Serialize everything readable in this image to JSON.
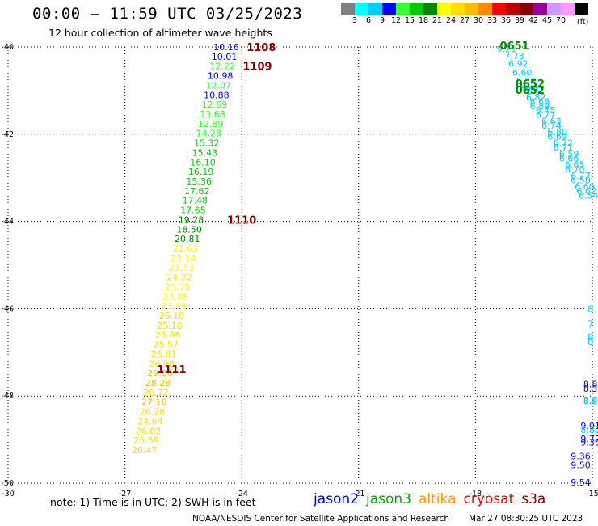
{
  "header": {
    "title": "00:00 – 11:59 UTC 03/25/2023",
    "subtitle": "12 hour collection of altimeter wave heights"
  },
  "legend": {
    "labels": [
      "3",
      "6",
      "9",
      "12",
      "15",
      "18",
      "21",
      "24",
      "27",
      "30",
      "33",
      "36",
      "39",
      "42",
      "45",
      "70"
    ],
    "colors": [
      "#808080",
      "#00ffff",
      "#00ccff",
      "#0000ff",
      "#33ff33",
      "#00cc00",
      "#008800",
      "#ffff00",
      "#ffdd00",
      "#ffbb00",
      "#ff8800",
      "#ff0000",
      "#bb0000",
      "#880000",
      "#990099",
      "#cc99ff",
      "#ff99ff",
      "#000000"
    ],
    "unit": "(ft)"
  },
  "footer": {
    "note": "note:  1) Time is in UTC; 2) SWH is in feet",
    "satellites": [
      {
        "name": "jason2",
        "color": "#0000ee"
      },
      {
        "name": "jason3",
        "color": "#00aa00"
      },
      {
        "name": "altika",
        "color": "#ff9900"
      },
      {
        "name": "cryosat",
        "color": "#ee0000"
      },
      {
        "name": "s3a",
        "color": "#880000"
      }
    ],
    "credit": "NOAA/NESDIS Center for Satellite Applications and Research",
    "timestamp": "Mar 27 08:30:25 UTC 2023"
  },
  "chart_data": {
    "type": "scatter",
    "xlim": [
      -30,
      -15
    ],
    "ylim": [
      -50,
      -40
    ],
    "x_ticks": [
      -30,
      -27,
      -24,
      -21,
      -18,
      -15
    ],
    "y_ticks": [
      -40,
      -42,
      -44,
      -46,
      -48,
      -50
    ],
    "x_tick_labels": [
      "-30",
      "-27",
      "-24",
      "-21",
      "-18",
      "-15"
    ],
    "y_tick_labels": [
      "-40",
      "-42",
      "-44",
      "-46",
      "-48",
      "-50"
    ],
    "grid": true,
    "track_swh": [
      {
        "x": -24.4,
        "y": -40.0,
        "v": "10.16",
        "c": "#0000ff"
      },
      {
        "x": -24.45,
        "y": -40.22,
        "v": "10.01",
        "c": "#0000ff"
      },
      {
        "x": -24.5,
        "y": -40.44,
        "v": "12.22",
        "c": "#33ff33"
      },
      {
        "x": -24.55,
        "y": -40.66,
        "v": "10.98",
        "c": "#0000ff"
      },
      {
        "x": -24.6,
        "y": -40.88,
        "v": "12.07",
        "c": "#33ff33"
      },
      {
        "x": -24.65,
        "y": -41.1,
        "v": "10.88",
        "c": "#0000ff"
      },
      {
        "x": -24.7,
        "y": -41.32,
        "v": "12.69",
        "c": "#33ff33"
      },
      {
        "x": -24.75,
        "y": -41.54,
        "v": "13.68",
        "c": "#33ff33"
      },
      {
        "x": -24.8,
        "y": -41.76,
        "v": "12.89",
        "c": "#33ff33"
      },
      {
        "x": -24.85,
        "y": -41.98,
        "v": "14.28",
        "c": "#33ff33"
      },
      {
        "x": -24.9,
        "y": -42.2,
        "v": "15.32",
        "c": "#00cc00"
      },
      {
        "x": -24.95,
        "y": -42.42,
        "v": "15.43",
        "c": "#00cc00"
      },
      {
        "x": -25.0,
        "y": -42.64,
        "v": "16.10",
        "c": "#00cc00"
      },
      {
        "x": -25.05,
        "y": -42.86,
        "v": "16.19",
        "c": "#00cc00"
      },
      {
        "x": -25.1,
        "y": -43.08,
        "v": "15.36",
        "c": "#00cc00"
      },
      {
        "x": -25.15,
        "y": -43.3,
        "v": "17.62",
        "c": "#00cc00"
      },
      {
        "x": -25.2,
        "y": -43.52,
        "v": "17.48",
        "c": "#00cc00"
      },
      {
        "x": -25.25,
        "y": -43.74,
        "v": "17.65",
        "c": "#00cc00"
      },
      {
        "x": -25.3,
        "y": -43.96,
        "v": "19.28",
        "c": "#008800"
      },
      {
        "x": -25.35,
        "y": -44.18,
        "v": "18.50",
        "c": "#008800"
      },
      {
        "x": -25.4,
        "y": -44.4,
        "v": "20.81",
        "c": "#008800"
      },
      {
        "x": -25.45,
        "y": -44.62,
        "v": "21.63",
        "c": "#ffff00"
      },
      {
        "x": -25.5,
        "y": -44.84,
        "v": "23.14",
        "c": "#ffff00"
      },
      {
        "x": -25.55,
        "y": -45.06,
        "v": "23.53",
        "c": "#ffff00"
      },
      {
        "x": -25.6,
        "y": -45.28,
        "v": "24.22",
        "c": "#ffdd00"
      },
      {
        "x": -25.65,
        "y": -45.5,
        "v": "23.78",
        "c": "#ffff00"
      },
      {
        "x": -25.7,
        "y": -45.72,
        "v": "23.88",
        "c": "#ffff00"
      },
      {
        "x": -25.75,
        "y": -45.94,
        "v": "23.78",
        "c": "#ffff00"
      },
      {
        "x": -25.8,
        "y": -46.16,
        "v": "26.10",
        "c": "#ffdd00"
      },
      {
        "x": -25.85,
        "y": -46.38,
        "v": "25.18",
        "c": "#ffdd00"
      },
      {
        "x": -25.9,
        "y": -46.6,
        "v": "25.86",
        "c": "#ffdd00"
      },
      {
        "x": -25.95,
        "y": -46.82,
        "v": "25.57",
        "c": "#ffdd00"
      },
      {
        "x": -26.0,
        "y": -47.04,
        "v": "25.81",
        "c": "#ffdd00"
      },
      {
        "x": -26.05,
        "y": -47.26,
        "v": "26.90",
        "c": "#ffdd00"
      },
      {
        "x": -26.1,
        "y": -47.48,
        "v": "29.00",
        "c": "#ffbb00"
      },
      {
        "x": -26.15,
        "y": -47.7,
        "v": "28.28",
        "c": "#ffbb00"
      },
      {
        "x": -26.2,
        "y": -47.92,
        "v": "26.72",
        "c": "#ffdd00"
      },
      {
        "x": -26.25,
        "y": -48.14,
        "v": "27.16",
        "c": "#ffbb00"
      },
      {
        "x": -26.3,
        "y": -48.36,
        "v": "26.28",
        "c": "#ffdd00"
      },
      {
        "x": -26.35,
        "y": -48.58,
        "v": "24.64",
        "c": "#ffdd00"
      },
      {
        "x": -26.4,
        "y": -48.8,
        "v": "26.02",
        "c": "#ffdd00"
      },
      {
        "x": -26.45,
        "y": -49.02,
        "v": "25.59",
        "c": "#ffdd00"
      },
      {
        "x": -26.5,
        "y": -49.24,
        "v": "26.47",
        "c": "#ffdd00"
      },
      {
        "x": -17.2,
        "y": -40.05,
        "v": "9.21",
        "c": "#00ccff"
      },
      {
        "x": -17.0,
        "y": -40.2,
        "v": "7.73",
        "c": "#00ccff"
      },
      {
        "x": -16.9,
        "y": -40.38,
        "v": "6.92",
        "c": "#00ccff"
      },
      {
        "x": -16.8,
        "y": -40.58,
        "v": "6.60",
        "c": "#00ccff"
      },
      {
        "x": -16.7,
        "y": -40.78,
        "v": "6.54",
        "c": "#00ccff"
      },
      {
        "x": -16.6,
        "y": -40.96,
        "v": "6.61",
        "c": "#00ccff"
      },
      {
        "x": -16.45,
        "y": -41.15,
        "v": "6.82",
        "c": "#00ccff"
      },
      {
        "x": -16.35,
        "y": -41.35,
        "v": "6.89",
        "c": "#00ccff"
      },
      {
        "x": -16.2,
        "y": -41.55,
        "v": "6.77",
        "c": "#00ccff"
      },
      {
        "x": -16.05,
        "y": -41.8,
        "v": "6.74",
        "c": "#00ccff"
      },
      {
        "x": -15.9,
        "y": -42.05,
        "v": "6.69",
        "c": "#00ccff"
      },
      {
        "x": -15.75,
        "y": -42.3,
        "v": "6.71",
        "c": "#00ccff"
      },
      {
        "x": -15.6,
        "y": -42.55,
        "v": "6.66",
        "c": "#00ccff"
      },
      {
        "x": -15.45,
        "y": -42.8,
        "v": "6.70",
        "c": "#00ccff"
      },
      {
        "x": -15.3,
        "y": -43.05,
        "v": "6.58",
        "c": "#00ccff"
      },
      {
        "x": -15.15,
        "y": -43.3,
        "v": "6.62",
        "c": "#00ccff"
      },
      {
        "x": -16.5,
        "y": -41.0,
        "v": "6.71",
        "c": "#00ccff"
      },
      {
        "x": -16.35,
        "y": -41.25,
        "v": "6.68",
        "c": "#00ccff"
      },
      {
        "x": -16.2,
        "y": -41.45,
        "v": "6.75",
        "c": "#00ccff"
      },
      {
        "x": -16.05,
        "y": -41.7,
        "v": "6.63",
        "c": "#00ccff"
      },
      {
        "x": -15.9,
        "y": -41.95,
        "v": "6.80",
        "c": "#00ccff"
      },
      {
        "x": -15.75,
        "y": -42.2,
        "v": "6.72",
        "c": "#00ccff"
      },
      {
        "x": -15.6,
        "y": -42.45,
        "v": "6.59",
        "c": "#00ccff"
      },
      {
        "x": -15.45,
        "y": -42.7,
        "v": "6.65",
        "c": "#00ccff"
      },
      {
        "x": -15.3,
        "y": -42.95,
        "v": "6.77",
        "c": "#00ccff"
      },
      {
        "x": -15.2,
        "y": -43.2,
        "v": "6.60",
        "c": "#00ccff"
      },
      {
        "x": -15.1,
        "y": -43.4,
        "v": "6.54",
        "c": "#00ccff"
      },
      {
        "x": -15.05,
        "y": -46.0,
        "v": "8",
        "c": "#00ccff"
      },
      {
        "x": -15.05,
        "y": -46.35,
        "v": "7",
        "c": "#00ccff"
      },
      {
        "x": -15.05,
        "y": -46.65,
        "v": "8",
        "c": "#00ccff"
      },
      {
        "x": -15.05,
        "y": -46.75,
        "v": "8",
        "c": "#00ccff"
      },
      {
        "x": -15.05,
        "y": -47.73,
        "v": "8.8",
        "c": "#0000ff"
      },
      {
        "x": -15.05,
        "y": -47.83,
        "v": "8.3",
        "c": "#0000ff"
      },
      {
        "x": -15.05,
        "y": -48.1,
        "v": "8.8",
        "c": "#00ccff"
      },
      {
        "x": -15.05,
        "y": -48.12,
        "v": "8.9",
        "c": "#00ccff"
      },
      {
        "x": -15.05,
        "y": -48.68,
        "v": "9.01",
        "c": "#0000ff"
      },
      {
        "x": -15.05,
        "y": -48.78,
        "v": "8.82",
        "c": "#00ccff"
      },
      {
        "x": -15.05,
        "y": -48.98,
        "v": "9.77",
        "c": "#0000ff"
      },
      {
        "x": -15.05,
        "y": -49.06,
        "v": "9.39",
        "c": "#0000ff"
      },
      {
        "x": -15.3,
        "y": -49.38,
        "v": "9.36",
        "c": "#0000ff"
      },
      {
        "x": -15.3,
        "y": -49.58,
        "v": "9.50",
        "c": "#0000ff"
      },
      {
        "x": -15.3,
        "y": -49.98,
        "v": "9.54",
        "c": "#0000ff"
      }
    ],
    "track_times": [
      {
        "x": -23.5,
        "y": -40.02,
        "v": "1108",
        "c": "#880000"
      },
      {
        "x": -23.6,
        "y": -40.45,
        "v": "1109",
        "c": "#880000"
      },
      {
        "x": -24.0,
        "y": -43.98,
        "v": "1110",
        "c": "#880000"
      },
      {
        "x": -25.8,
        "y": -47.4,
        "v": "1111",
        "c": "#880000"
      },
      {
        "x": -17.0,
        "y": -39.98,
        "v": "0651",
        "c": "#008800"
      },
      {
        "x": -16.6,
        "y": -40.85,
        "v": "0652",
        "c": "#008800"
      },
      {
        "x": -16.6,
        "y": -41.0,
        "v": "0652",
        "c": "#008800"
      }
    ]
  }
}
